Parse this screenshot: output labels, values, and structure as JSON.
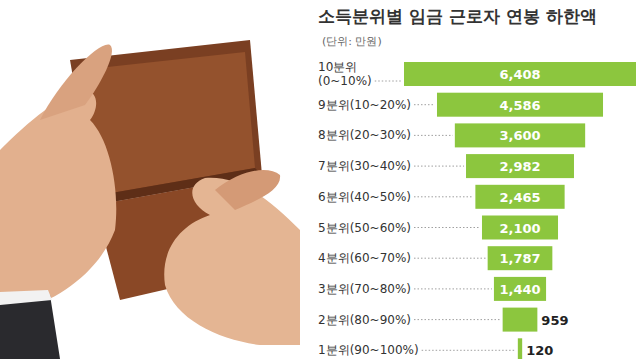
{
  "chart_data": {
    "type": "bar",
    "orientation": "horizontal",
    "title": "소득분위별 임금 근로자 연봉 하한액",
    "subtitle": "(단위: 만원)",
    "categories": [
      "10분위(0~10%)",
      "9분위(10~20%)",
      "8분위(20~30%)",
      "7분위(30~40%)",
      "6분위(40~50%)",
      "5분위(50~60%)",
      "4분위(60~70%)",
      "3분위(70~80%)",
      "2분위(80~90%)",
      "1분위(90~100%)"
    ],
    "values": [
      6408,
      4586,
      3600,
      2982,
      2465,
      2100,
      1787,
      1440,
      959,
      120
    ],
    "value_labels": [
      "6,408",
      "4,586",
      "3,600",
      "2,982",
      "2,465",
      "2,100",
      "1,787",
      "1,440",
      "959",
      "120"
    ],
    "xlim": [
      0,
      6408
    ],
    "color": "#8cc63e",
    "data_labels": true,
    "tick_labels": false,
    "grid": false
  }
}
